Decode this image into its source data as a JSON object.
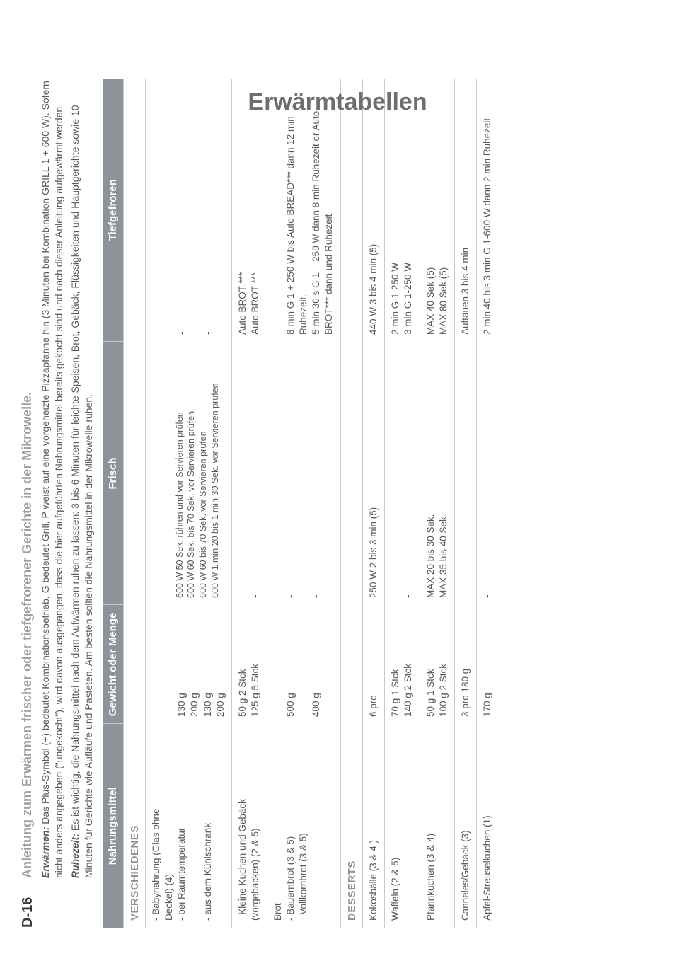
{
  "page_number": "D-16",
  "side_title": "Erwärmtabellen",
  "intro": {
    "heading": "Anleitung zum Erwärmen frischer oder tiefgefrorener Gerichte in der Mikrowelle.",
    "p1_label": "Erwärmen:",
    "p1": "Das Plus-Symbol (+) bedeutet Kombinationsbetrieb, G bedeutet Grill, P weist auf eine vorgeheizte Pizzapfanne hin (3 Minuten bei Kombination GRILL 1 + 600 W). Sofern nicht anders angegeben (\"ungekocht\"), wird davon ausgegangen, dass die hier aufgeführten Nahrungsmittel bereits gekocht sind und nach dieser Anleitung aufgewärmt werden.",
    "p2_label": "Ruhezeit:",
    "p2": "Es ist wichtig, die Nahrungsmittel nach dem Aufwärmen ruhen zu lassen: 3 bis 6 Minuten für leichte Speisen, Brot, Gebäck, Flüssigkeiten und Hauptgerichte sowie 10 Minuten für Gerichte wie Aufläufe und Pasteten. Am besten sollten die Nahrungsmittel in der Mikrowelle ruhen."
  },
  "headers": {
    "c1": "Nahrungsmittel",
    "c2": "Gewicht oder Menge",
    "c3": "Frisch",
    "c4": "Tiefgefroren"
  },
  "section1": "VERSCHIEDENES",
  "row1": {
    "c1": "- Babynahrung (Glas ohne\n  Deckel) (4)\n- bei Raumtemperatur\n\n- aus dem Kühlschrank",
    "c2": "\n\n130 g\n200 g\n130 g\n200 g",
    "c3": "\n\n600 W 50 Sek. rühren und vor Servieren prüfen\n600 W 60 Sek. bis 70 Sek. vor Servieren prüfen\n600 W 60 bis 70 Sek. vor Servieren prüfen\n600 W 1 min 20 bis 1 min 30 Sek. vor Servieren prüfen",
    "c4": "\n\n-\n-\n-\n-"
  },
  "row2": {
    "c1": "- Kleine Kuchen und Gebäck\n  (vorgebacken) (2 & 5)",
    "c2": "50 g 2 Stck\n125 g 5 Stck",
    "c3": "-\n-",
    "c4": "Auto BROT ***\nAuto BROT ***"
  },
  "row3": {
    "c1": "Brot\n- Bauernbrot (3 & 5)\n- Vollkornbrot (3 & 5)",
    "c2": "\n500 g\n\n400 g",
    "c3": "\n-\n\n-",
    "c4": "\n8 min G 1 + 250 W bis Auto BREAD*** dann 12 min Ruhezeit.\n5 min 30 s G 1 + 250 W dann 8 min Ruhezeit or Auto BROT*** dann und Ruhezeit"
  },
  "section2": "DESSERTS",
  "row4": {
    "c1": "Kokosbälle (3 & 4 )",
    "c2": "6 pro",
    "c3": "250 W 2 bis 3 min (5)",
    "c4": "440 W 3 bis 4 min (5)"
  },
  "row5": {
    "c1": "Waffeln (2 & 5)",
    "c2": "70 g 1 Stck\n140 g 2 Stck",
    "c3": "-\n-",
    "c4": "2 min G 1-250 W\n3 min G 1-250 W"
  },
  "row6": {
    "c1": "Pfannkuchen (3 & 4)",
    "c2": "50 g 1 Stck\n100 g 2 Stck",
    "c3": "MAX 20 bis 30 Sek.\nMAX 35 bis 40 Sek.",
    "c4": "MAX 40 Sek (5)\nMAX 80 Sek (5)"
  },
  "row7": {
    "c1": "Canneles/Gebäck (3)",
    "c2": "3 pro 180 g",
    "c3": "-",
    "c4": "Auftauen 3 bis 4 min"
  },
  "row8": {
    "c1": "Apfel-Streuselkuchen (1)",
    "c2": "170 g",
    "c3": "-",
    "c4": "2 min 40 bis 3 min G 1-600 W dann 2 min Ruhezeit"
  }
}
